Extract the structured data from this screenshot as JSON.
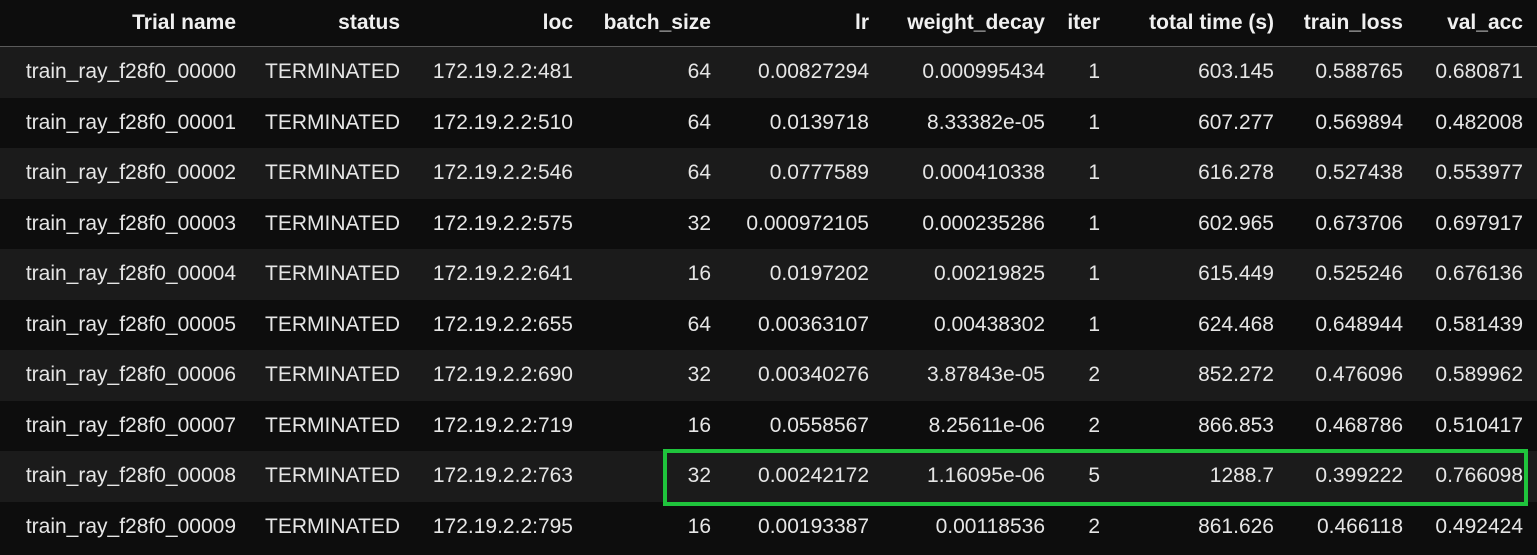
{
  "columns": [
    "Trial name",
    "status",
    "loc",
    "batch_size",
    "lr",
    "weight_decay",
    "iter",
    "total time (s)",
    "train_loss",
    "val_acc"
  ],
  "rows": [
    [
      "train_ray_f28f0_00000",
      "TERMINATED",
      "172.19.2.2:481",
      "64",
      "0.00827294",
      "0.000995434",
      "1",
      "603.145",
      "0.588765",
      "0.680871"
    ],
    [
      "train_ray_f28f0_00001",
      "TERMINATED",
      "172.19.2.2:510",
      "64",
      "0.0139718",
      "8.33382e-05",
      "1",
      "607.277",
      "0.569894",
      "0.482008"
    ],
    [
      "train_ray_f28f0_00002",
      "TERMINATED",
      "172.19.2.2:546",
      "64",
      "0.0777589",
      "0.000410338",
      "1",
      "616.278",
      "0.527438",
      "0.553977"
    ],
    [
      "train_ray_f28f0_00003",
      "TERMINATED",
      "172.19.2.2:575",
      "32",
      "0.000972105",
      "0.000235286",
      "1",
      "602.965",
      "0.673706",
      "0.697917"
    ],
    [
      "train_ray_f28f0_00004",
      "TERMINATED",
      "172.19.2.2:641",
      "16",
      "0.0197202",
      "0.00219825",
      "1",
      "615.449",
      "0.525246",
      "0.676136"
    ],
    [
      "train_ray_f28f0_00005",
      "TERMINATED",
      "172.19.2.2:655",
      "64",
      "0.00363107",
      "0.00438302",
      "1",
      "624.468",
      "0.648944",
      "0.581439"
    ],
    [
      "train_ray_f28f0_00006",
      "TERMINATED",
      "172.19.2.2:690",
      "32",
      "0.00340276",
      "3.87843e-05",
      "2",
      "852.272",
      "0.476096",
      "0.589962"
    ],
    [
      "train_ray_f28f0_00007",
      "TERMINATED",
      "172.19.2.2:719",
      "16",
      "0.0558567",
      "8.25611e-06",
      "2",
      "866.853",
      "0.468786",
      "0.510417"
    ],
    [
      "train_ray_f28f0_00008",
      "TERMINATED",
      "172.19.2.2:763",
      "32",
      "0.00242172",
      "1.16095e-06",
      "5",
      "1288.7",
      "0.399222",
      "0.766098"
    ],
    [
      "train_ray_f28f0_00009",
      "TERMINATED",
      "172.19.2.2:795",
      "16",
      "0.00193387",
      "0.00118536",
      "2",
      "861.626",
      "0.466118",
      "0.492424"
    ]
  ],
  "highlight": {
    "row_index": 8,
    "color": "#1fc43c"
  },
  "colors": {
    "background": "#0d0d0d",
    "row_stripe": "#1b1b1b",
    "text": "#e6e6e6"
  }
}
